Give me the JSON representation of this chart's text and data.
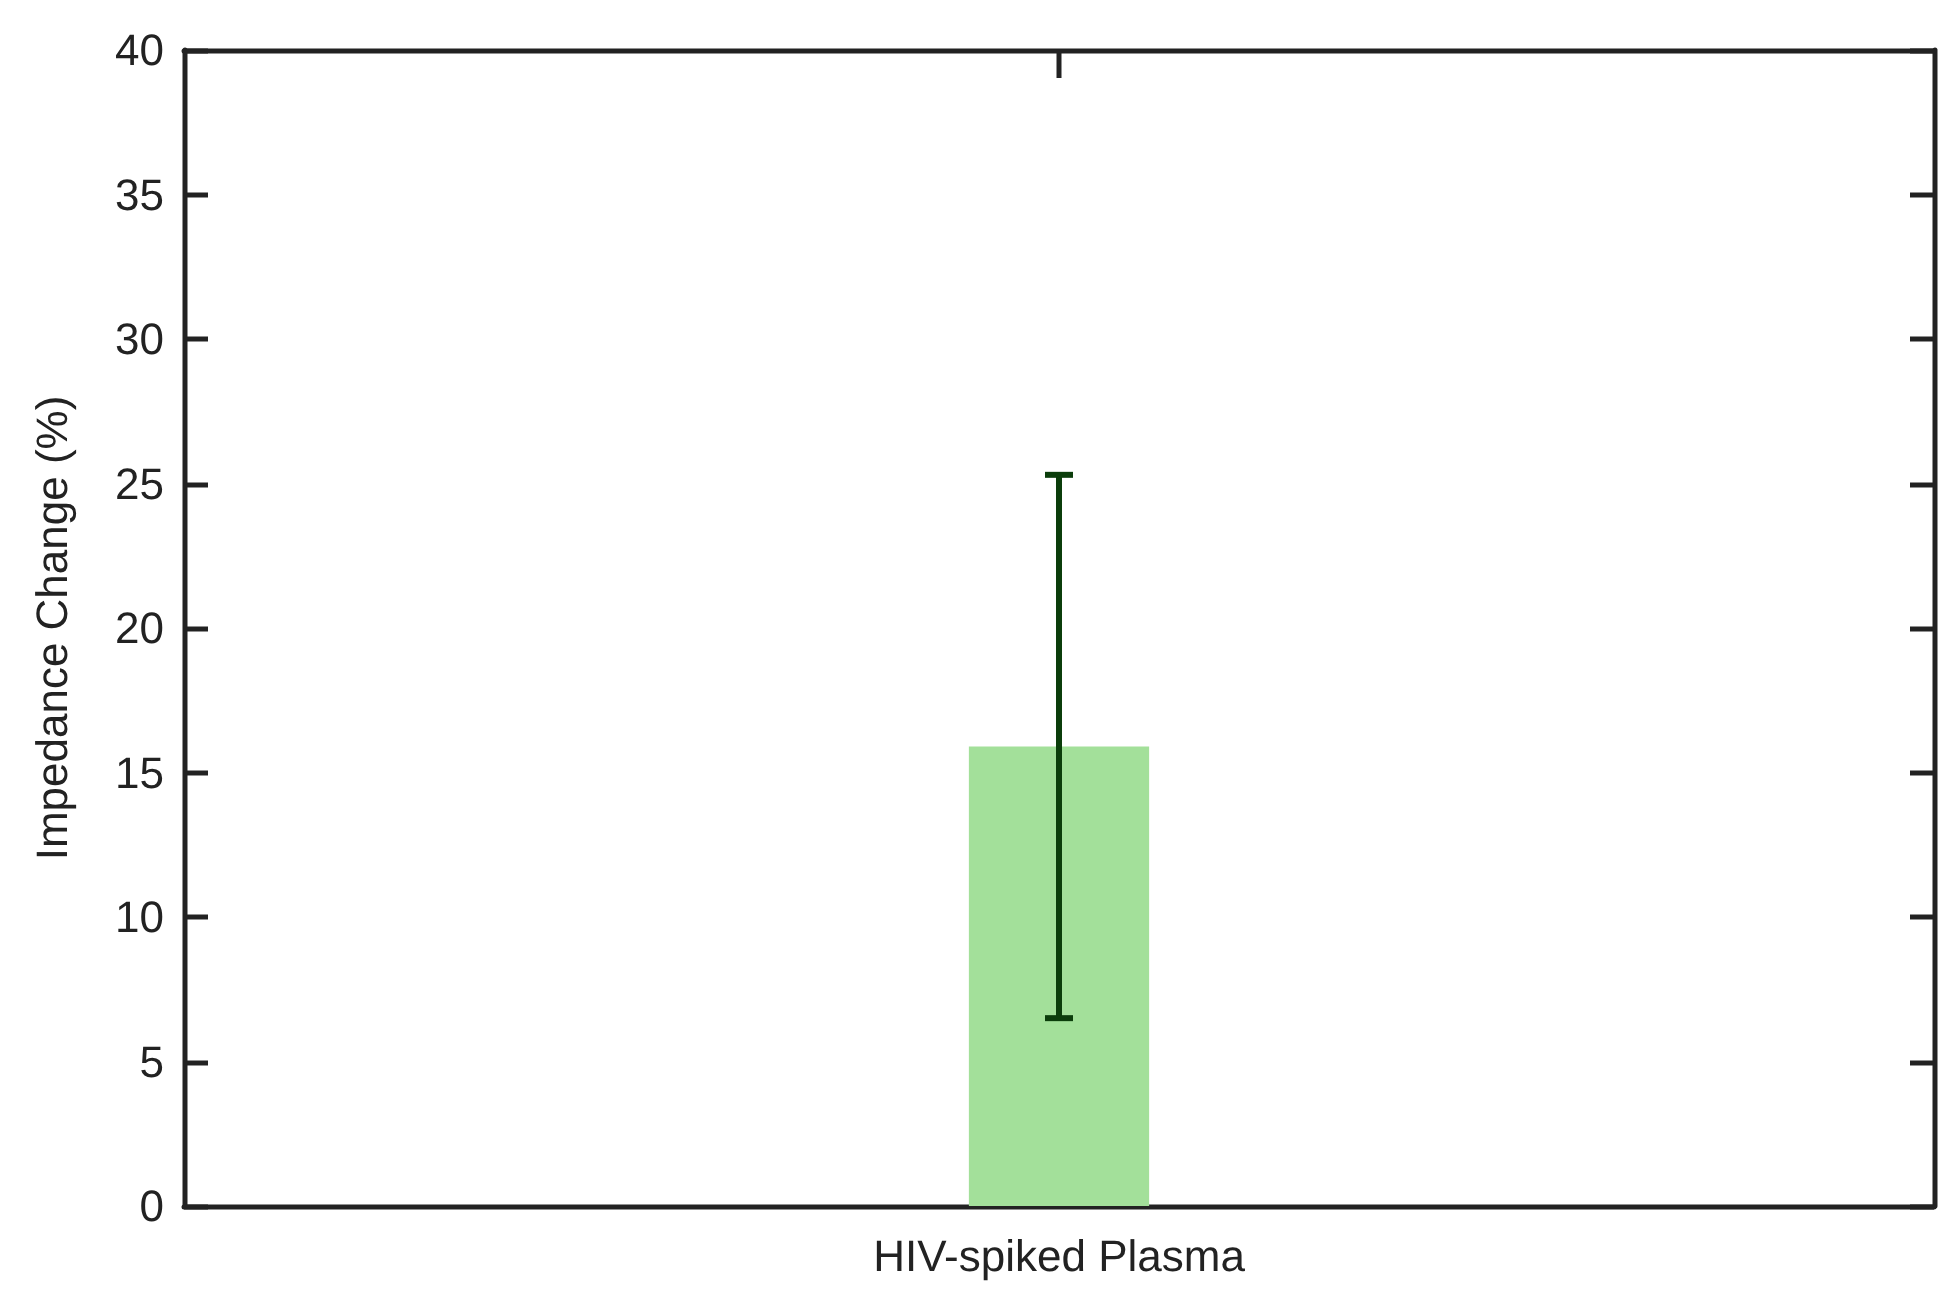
{
  "chart_data": {
    "type": "bar",
    "ylabel": "Impedance Change (%)",
    "categories": [
      "HIV-spiked Plasma"
    ],
    "values": [
      15.9
    ],
    "errors": [
      [
        6.5,
        25.3
      ]
    ],
    "color": "#a3e09a",
    "ylim": [
      0,
      40
    ],
    "yticks": [
      0,
      5,
      10,
      15,
      20,
      25,
      30,
      35,
      40
    ],
    "grid": false
  }
}
